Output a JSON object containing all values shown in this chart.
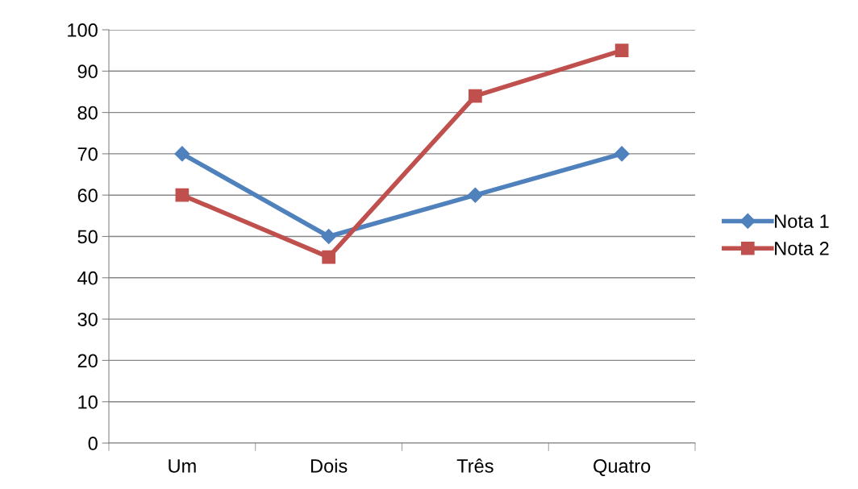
{
  "chart_data": {
    "type": "line",
    "categories": [
      "Um",
      "Dois",
      "Três",
      "Quatro"
    ],
    "series": [
      {
        "name": "Nota 1",
        "color": "#4f81bd",
        "marker": "diamond",
        "values": [
          70,
          50,
          60,
          70
        ]
      },
      {
        "name": "Nota 2",
        "color": "#c0504d",
        "marker": "square",
        "values": [
          60,
          45,
          84,
          95
        ]
      }
    ],
    "ylim": [
      0,
      100
    ],
    "yticks": [
      0,
      10,
      20,
      30,
      40,
      50,
      60,
      70,
      80,
      90,
      100
    ],
    "grid": "y",
    "legend": "right",
    "line_style": "solid"
  }
}
